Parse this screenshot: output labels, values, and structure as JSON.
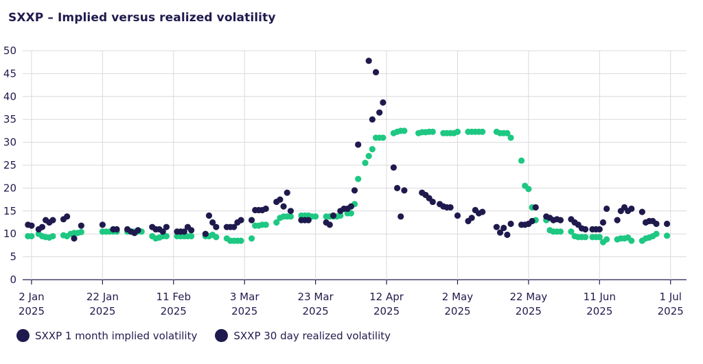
{
  "chart_data": {
    "type": "scatter",
    "title": "SXXP – Implied versus realized volatility",
    "xlabel": "",
    "ylabel": "",
    "ylim": [
      0,
      50
    ],
    "yticks": [
      0,
      5,
      10,
      15,
      20,
      25,
      30,
      35,
      40,
      45,
      50
    ],
    "xlim_day": [
      -1.5,
      185.5
    ],
    "xticks": [
      {
        "day": 1,
        "line1": "2 Jan",
        "line2": "2025"
      },
      {
        "day": 21,
        "line1": "22 Jan",
        "line2": "2025"
      },
      {
        "day": 41,
        "line1": "11 Feb",
        "line2": "2025"
      },
      {
        "day": 61,
        "line1": "3 Mar",
        "line2": "2025"
      },
      {
        "day": 81,
        "line1": "23 Mar",
        "line2": "2025"
      },
      {
        "day": 101,
        "line1": "12 Apr",
        "line2": "2025"
      },
      {
        "day": 121,
        "line1": "2 May",
        "line2": "2025"
      },
      {
        "day": 141,
        "line1": "22 May",
        "line2": "2025"
      },
      {
        "day": 161,
        "line1": "11 Jun",
        "line2": "2025"
      },
      {
        "day": 181,
        "line1": "1 Jul",
        "line2": "2025"
      }
    ],
    "grid": true,
    "legend_position": "bottom-left",
    "series": [
      {
        "name": "SXXP 1 month implied volatility",
        "color": "#1f1a4d",
        "points": [
          [
            0,
            12
          ],
          [
            1,
            11.8
          ],
          [
            3,
            11
          ],
          [
            4,
            11.5
          ],
          [
            5,
            13
          ],
          [
            6,
            12.5
          ],
          [
            7,
            13
          ],
          [
            10,
            13.2
          ],
          [
            11,
            13.8
          ],
          [
            13,
            9
          ],
          [
            15,
            11.8
          ],
          [
            21,
            12
          ],
          [
            24,
            11
          ],
          [
            25,
            11
          ],
          [
            28,
            11
          ],
          [
            29,
            10.5
          ],
          [
            30,
            10.2
          ],
          [
            31,
            10.8
          ],
          [
            35,
            11.5
          ],
          [
            36,
            11
          ],
          [
            37,
            11
          ],
          [
            38,
            10.5
          ],
          [
            39,
            11.5
          ],
          [
            42,
            10.5
          ],
          [
            43,
            10.5
          ],
          [
            44,
            10.5
          ],
          [
            45,
            11.5
          ],
          [
            46,
            10.8
          ],
          [
            50,
            10
          ],
          [
            51,
            14
          ],
          [
            52,
            12.5
          ],
          [
            53,
            11.5
          ],
          [
            56,
            11.5
          ],
          [
            57,
            11.5
          ],
          [
            58,
            11.5
          ],
          [
            59,
            12.5
          ],
          [
            60,
            13
          ],
          [
            63,
            13
          ],
          [
            64,
            15.2
          ],
          [
            65,
            15.2
          ],
          [
            66,
            15.2
          ],
          [
            67,
            15.5
          ],
          [
            70,
            17
          ],
          [
            71,
            17.5
          ],
          [
            72,
            16
          ],
          [
            73,
            19
          ],
          [
            74,
            15
          ],
          [
            77,
            13
          ],
          [
            78,
            13
          ],
          [
            79,
            13
          ],
          [
            84,
            12.5
          ],
          [
            85,
            12
          ],
          [
            86,
            14
          ],
          [
            88,
            15
          ],
          [
            89,
            15.5
          ],
          [
            90,
            15.5
          ],
          [
            91,
            16
          ],
          [
            92,
            19.5
          ],
          [
            93,
            29.5
          ],
          [
            96,
            47.8
          ],
          [
            97,
            35
          ],
          [
            98,
            45.3
          ],
          [
            99,
            36.5
          ],
          [
            100,
            38.7
          ],
          [
            103,
            24.5
          ],
          [
            104,
            20
          ],
          [
            105,
            13.8
          ],
          [
            106,
            19.5
          ],
          [
            111,
            19
          ],
          [
            112,
            18.5
          ],
          [
            113,
            17.8
          ],
          [
            114,
            17
          ],
          [
            116,
            16.5
          ],
          [
            117,
            16
          ],
          [
            118,
            15.8
          ],
          [
            119,
            15.8
          ],
          [
            121,
            14
          ],
          [
            124,
            12.8
          ],
          [
            125,
            13.5
          ],
          [
            126,
            15.2
          ],
          [
            127,
            14.5
          ],
          [
            128,
            14.8
          ],
          [
            132,
            11.5
          ],
          [
            133,
            10.3
          ],
          [
            134,
            11.3
          ],
          [
            135,
            9.8
          ],
          [
            136,
            12.2
          ],
          [
            139,
            12
          ],
          [
            140,
            12
          ],
          [
            141,
            12.2
          ],
          [
            142,
            12.8
          ],
          [
            143,
            15.8
          ],
          [
            146,
            13.8
          ],
          [
            147,
            13.5
          ],
          [
            148,
            13
          ],
          [
            149,
            13.2
          ],
          [
            150,
            13
          ],
          [
            153,
            13.2
          ],
          [
            154,
            12.5
          ],
          [
            155,
            12
          ],
          [
            156,
            11.2
          ],
          [
            157,
            11
          ],
          [
            159,
            11
          ],
          [
            160,
            11
          ],
          [
            161,
            11
          ],
          [
            162,
            12.5
          ],
          [
            163,
            15.5
          ],
          [
            166,
            13
          ],
          [
            167,
            15
          ],
          [
            168,
            15.8
          ],
          [
            169,
            15
          ],
          [
            170,
            15.5
          ],
          [
            173,
            14.8
          ],
          [
            174,
            12.5
          ],
          [
            175,
            12.8
          ],
          [
            176,
            12.8
          ],
          [
            177,
            12.2
          ],
          [
            180,
            12.2
          ]
        ]
      },
      {
        "name": "SXXP 30 day realized volatility",
        "color": "#1ec882",
        "points": [
          [
            0,
            9.5
          ],
          [
            1,
            9.5
          ],
          [
            3,
            10
          ],
          [
            4,
            9.5
          ],
          [
            5,
            9.3
          ],
          [
            6,
            9.2
          ],
          [
            7,
            9.5
          ],
          [
            10,
            9.7
          ],
          [
            11,
            9.5
          ],
          [
            12,
            10
          ],
          [
            13,
            10.2
          ],
          [
            14,
            10.2
          ],
          [
            15,
            10.4
          ],
          [
            21,
            10.5
          ],
          [
            22,
            10.5
          ],
          [
            23,
            10.5
          ],
          [
            24,
            10.5
          ],
          [
            25,
            10.5
          ],
          [
            28,
            10.5
          ],
          [
            29,
            10.5
          ],
          [
            30,
            10.5
          ],
          [
            31,
            10.5
          ],
          [
            32,
            10.5
          ],
          [
            35,
            9.5
          ],
          [
            36,
            9
          ],
          [
            37,
            9.2
          ],
          [
            38,
            9.5
          ],
          [
            39,
            9.5
          ],
          [
            42,
            9.5
          ],
          [
            43,
            9.5
          ],
          [
            44,
            9.5
          ],
          [
            45,
            9.5
          ],
          [
            46,
            9.5
          ],
          [
            50,
            9.5
          ],
          [
            51,
            9.5
          ],
          [
            52,
            9.8
          ],
          [
            53,
            9.3
          ],
          [
            56,
            9
          ],
          [
            57,
            8.5
          ],
          [
            58,
            8.5
          ],
          [
            59,
            8.5
          ],
          [
            60,
            8.5
          ],
          [
            63,
            9
          ],
          [
            64,
            11.8
          ],
          [
            65,
            11.8
          ],
          [
            66,
            12
          ],
          [
            67,
            12
          ],
          [
            70,
            12.5
          ],
          [
            71,
            13.5
          ],
          [
            72,
            13.8
          ],
          [
            73,
            13.8
          ],
          [
            74,
            13.8
          ],
          [
            77,
            14
          ],
          [
            78,
            14
          ],
          [
            79,
            14
          ],
          [
            80,
            13.8
          ],
          [
            81,
            13.8
          ],
          [
            84,
            13.8
          ],
          [
            85,
            13.8
          ],
          [
            86,
            13.8
          ],
          [
            87,
            13.8
          ],
          [
            88,
            14
          ],
          [
            90,
            14.5
          ],
          [
            91,
            14.5
          ],
          [
            92,
            16.5
          ],
          [
            93,
            22
          ],
          [
            95,
            25.5
          ],
          [
            96,
            27
          ],
          [
            97,
            28.5
          ],
          [
            98,
            31
          ],
          [
            99,
            31
          ],
          [
            100,
            31
          ],
          [
            103,
            32
          ],
          [
            104,
            32.3
          ],
          [
            105,
            32.5
          ],
          [
            106,
            32.5
          ],
          [
            110,
            32
          ],
          [
            111,
            32.2
          ],
          [
            112,
            32.2
          ],
          [
            113,
            32.3
          ],
          [
            114,
            32.3
          ],
          [
            117,
            32
          ],
          [
            118,
            32
          ],
          [
            119,
            32
          ],
          [
            120,
            32
          ],
          [
            121,
            32.3
          ],
          [
            124,
            32.3
          ],
          [
            125,
            32.3
          ],
          [
            126,
            32.3
          ],
          [
            127,
            32.3
          ],
          [
            128,
            32.3
          ],
          [
            132,
            32.3
          ],
          [
            133,
            32
          ],
          [
            134,
            32
          ],
          [
            135,
            32
          ],
          [
            136,
            31
          ],
          [
            139,
            26
          ],
          [
            140,
            20.5
          ],
          [
            141,
            19.8
          ],
          [
            142,
            15.8
          ],
          [
            143,
            13
          ],
          [
            146,
            13
          ],
          [
            147,
            10.8
          ],
          [
            148,
            10.5
          ],
          [
            149,
            10.5
          ],
          [
            150,
            10.5
          ],
          [
            153,
            10.5
          ],
          [
            154,
            9.5
          ],
          [
            155,
            9.3
          ],
          [
            156,
            9.3
          ],
          [
            157,
            9.3
          ],
          [
            159,
            9.3
          ],
          [
            160,
            9.3
          ],
          [
            161,
            9.3
          ],
          [
            162,
            8.2
          ],
          [
            163,
            8.8
          ],
          [
            166,
            8.8
          ],
          [
            167,
            9
          ],
          [
            168,
            9
          ],
          [
            169,
            9.2
          ],
          [
            170,
            8.5
          ],
          [
            173,
            8.5
          ],
          [
            174,
            9
          ],
          [
            175,
            9.2
          ],
          [
            176,
            9.5
          ],
          [
            177,
            10
          ],
          [
            180,
            9.6
          ]
        ]
      }
    ]
  }
}
